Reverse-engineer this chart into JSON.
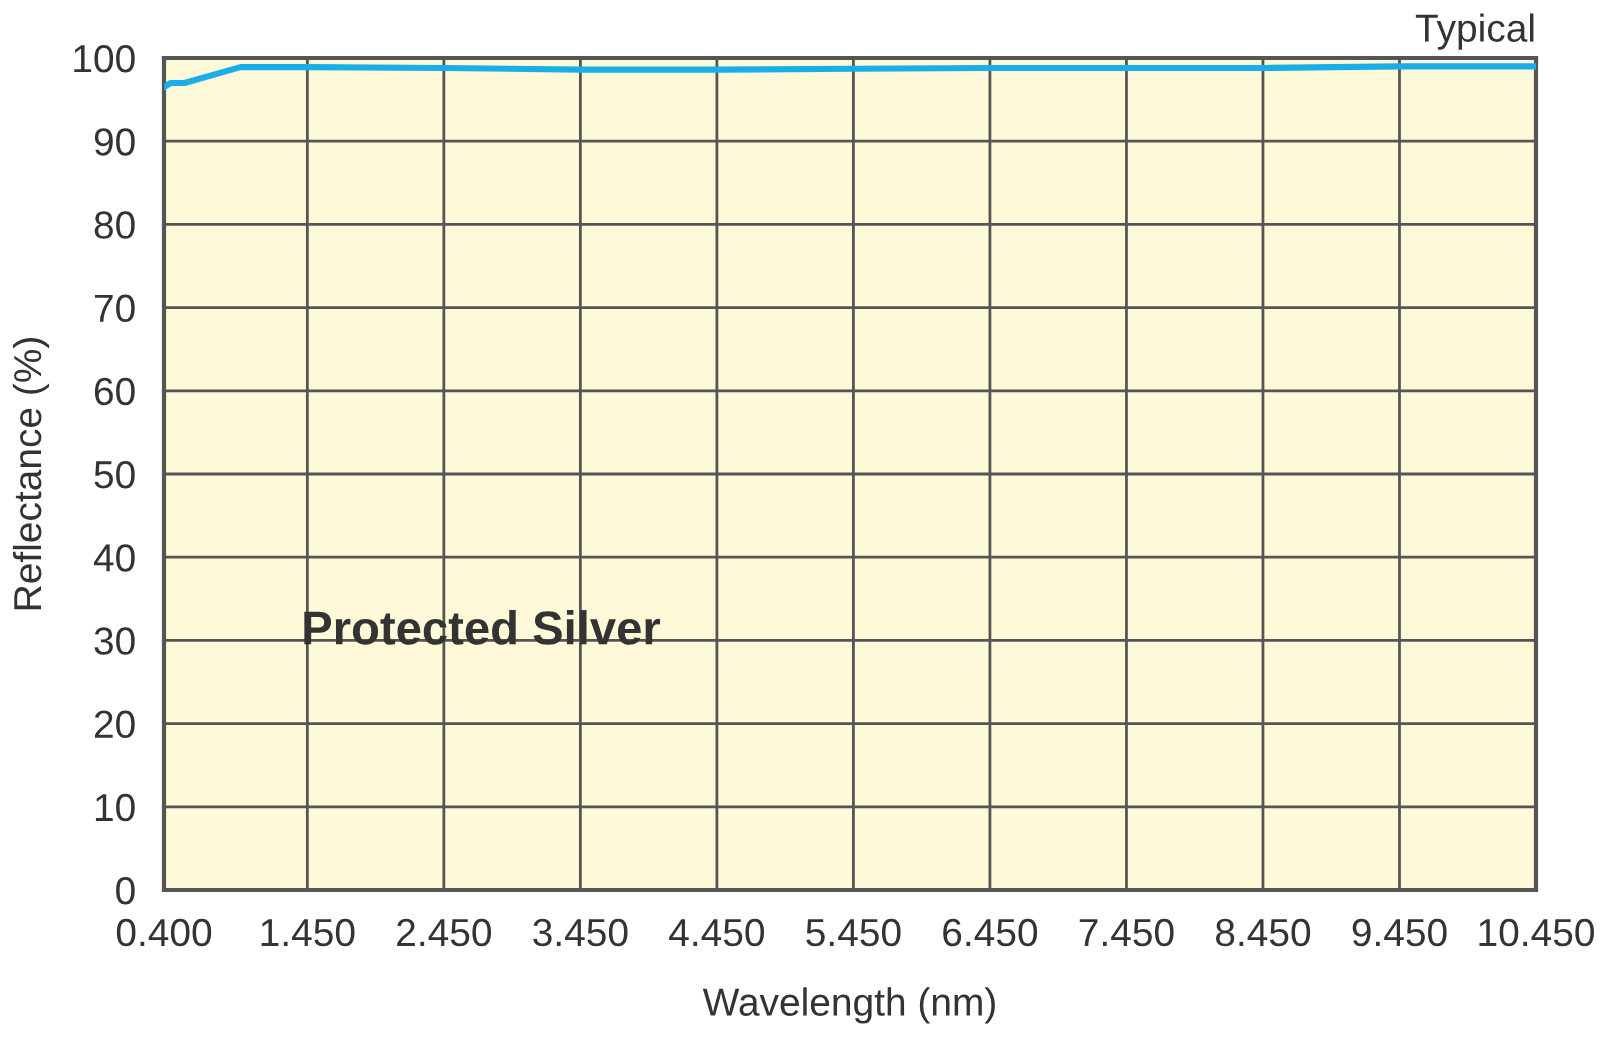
{
  "chart_data": {
    "type": "line",
    "xlabel": "Wavelength (nm)",
    "ylabel": "Reflectance (%)",
    "annotations": [
      "Typical"
    ],
    "x": [
      0.4,
      0.45,
      0.55,
      0.96,
      1.45,
      2.45,
      3.45,
      4.45,
      5.45,
      6.45,
      7.45,
      8.45,
      9.45,
      10.45
    ],
    "series": [
      {
        "name": "Protected Silver",
        "color": "#1aaee8",
        "values": [
          96.5,
          97.0,
          97.0,
          98.9,
          98.9,
          98.8,
          98.6,
          98.6,
          98.7,
          98.8,
          98.8,
          98.8,
          99.0,
          99.0
        ]
      }
    ],
    "xlim": [
      0.4,
      10.45
    ],
    "xticks": [
      {
        "value": 0.4,
        "label": "0.400"
      },
      {
        "value": 1.45,
        "label": "1.450"
      },
      {
        "value": 2.45,
        "label": "2.450"
      },
      {
        "value": 3.45,
        "label": "3.450"
      },
      {
        "value": 4.45,
        "label": "4.450"
      },
      {
        "value": 5.45,
        "label": "5.450"
      },
      {
        "value": 6.45,
        "label": "6.450"
      },
      {
        "value": 7.45,
        "label": "7.450"
      },
      {
        "value": 8.45,
        "label": "8.450"
      },
      {
        "value": 9.45,
        "label": "9.450"
      },
      {
        "value": 10.45,
        "label": "10.450"
      }
    ],
    "ylim": [
      0,
      100
    ],
    "yticks": [
      0,
      10,
      20,
      30,
      40,
      50,
      60,
      70,
      80,
      90,
      100
    ],
    "grid": true,
    "legend": false,
    "marker": "none",
    "line_style": "solid"
  }
}
